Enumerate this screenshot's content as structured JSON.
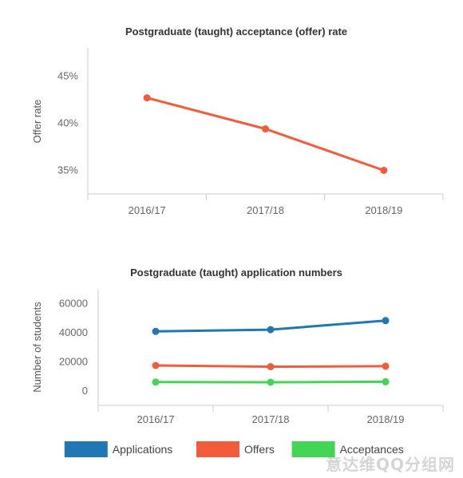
{
  "chart_data": [
    {
      "type": "line",
      "title": "Postgraduate (taught) acceptance (offer) rate",
      "xlabel": "",
      "ylabel": "Offer rate",
      "categories": [
        "2016/17",
        "2017/18",
        "2018/19"
      ],
      "y_ticks": [
        "45%",
        "40%",
        "35%"
      ],
      "y_tick_values": [
        45,
        40,
        35
      ],
      "ylim": [
        32.5,
        48
      ],
      "grid": false,
      "series": [
        {
          "values": [
            42.7,
            39.4,
            35.0
          ],
          "color": "#f25c3b"
        }
      ]
    },
    {
      "type": "line",
      "title": "Postgraduate (taught) application numbers",
      "xlabel": "",
      "ylabel": "Number of students",
      "categories": [
        "2016/17",
        "2017/18",
        "2018/19"
      ],
      "y_ticks": [
        "60000",
        "40000",
        "20000",
        "0"
      ],
      "y_tick_values": [
        60000,
        40000,
        20000,
        0
      ],
      "ylim": [
        -10000,
        70000
      ],
      "grid": false,
      "legend_position": "bottom",
      "series": [
        {
          "name": "Applications",
          "values": [
            40800,
            42000,
            48200
          ],
          "color": "#1f77b4"
        },
        {
          "name": "Offers",
          "values": [
            17400,
            16600,
            16900
          ],
          "color": "#f25c3b"
        },
        {
          "name": "Acceptances",
          "values": [
            6000,
            5900,
            6200
          ],
          "color": "#43d554"
        }
      ]
    }
  ],
  "watermark": "意达维QQ分组网"
}
